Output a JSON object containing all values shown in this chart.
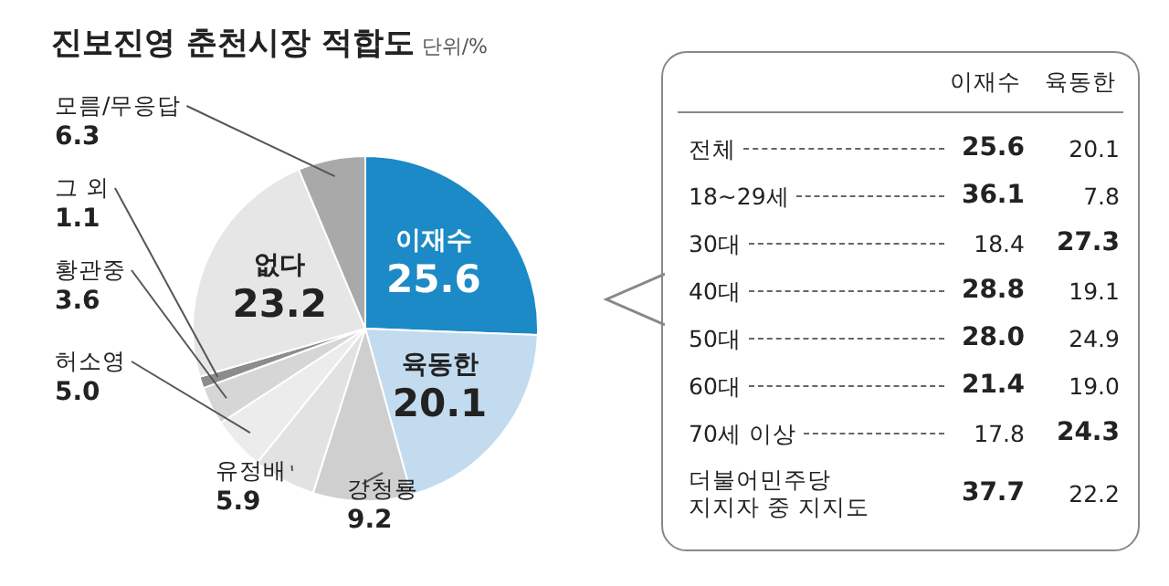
{
  "chart_data": [
    {
      "type": "pie",
      "title": "진보진영 춘천시장 적합도",
      "subtitle": "단위/%",
      "categories": [
        "이재수",
        "육동한",
        "강청룡",
        "유정배",
        "허소영",
        "황관중",
        "그 외",
        "없다",
        "모름/무응답"
      ],
      "values": [
        25.6,
        20.1,
        9.2,
        5.9,
        5.0,
        3.6,
        1.1,
        23.2,
        6.3
      ],
      "value_labels": [
        "25.6",
        "20.1",
        "9.2",
        "5.9",
        "5.0",
        "3.6",
        "1.1",
        "23.2",
        "6.3"
      ],
      "colors": [
        "#1b8ac6",
        "#c3dbef",
        "#cfcfcf",
        "#e2e2e2",
        "#ececec",
        "#d6d6d6",
        "#8c8c8c",
        "#e6e6e6",
        "#a9a9a9"
      ],
      "legend": false
    },
    {
      "type": "heatmap",
      "categories": [
        "이재수",
        "육동한"
      ],
      "y_categories": [
        "전체",
        "18~29세",
        "30대",
        "40대",
        "50대",
        "60대",
        "70세 이상",
        "더불어민주당\n지지자 중 지지도"
      ],
      "cells": [
        [
          25.6,
          20.1
        ],
        [
          36.1,
          7.8
        ],
        [
          18.4,
          27.3
        ],
        [
          28.8,
          19.1
        ],
        [
          28.0,
          24.9
        ],
        [
          21.4,
          19.0
        ],
        [
          17.8,
          24.3
        ],
        [
          37.7,
          22.2
        ]
      ],
      "cell_labels": [
        [
          "25.6",
          "20.1"
        ],
        [
          "36.1",
          "7.8"
        ],
        [
          "18.4",
          "27.3"
        ],
        [
          "28.8",
          "19.1"
        ],
        [
          "28.0",
          "24.9"
        ],
        [
          "21.4",
          "19.0"
        ],
        [
          "17.8",
          "24.3"
        ],
        [
          "37.7",
          "22.2"
        ]
      ]
    }
  ]
}
